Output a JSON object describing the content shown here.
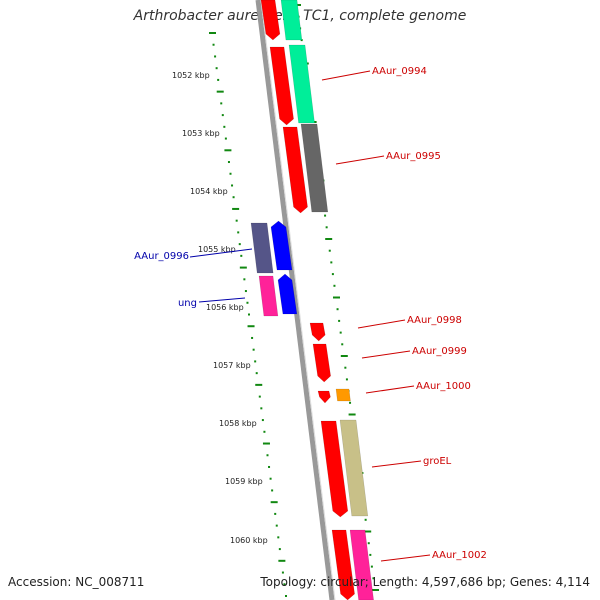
{
  "title": "Arthrobacter aurescens TC1, complete genome",
  "accession": "Accession: NC_008711",
  "summary": "Topology: circular; Length: 4,597,686 bp; Genes: 4,114",
  "ticks": [
    {
      "label": "1052 kbp"
    },
    {
      "label": "1053 kbp"
    },
    {
      "label": "1054 kbp"
    },
    {
      "label": "1055 kbp"
    },
    {
      "label": "1056 kbp"
    },
    {
      "label": "1057 kbp"
    },
    {
      "label": "1058 kbp"
    },
    {
      "label": "1059 kbp"
    },
    {
      "label": "1060 kbp"
    }
  ],
  "gene_labels": [
    {
      "text": "AAur_0994",
      "color": "#cc0000"
    },
    {
      "text": "AAur_0995",
      "color": "#cc0000"
    },
    {
      "text": "AAur_0996",
      "color": "#0000aa"
    },
    {
      "text": "ung",
      "color": "#0000aa"
    },
    {
      "text": "AAur_0998",
      "color": "#cc0000"
    },
    {
      "text": "AAur_0999",
      "color": "#cc0000"
    },
    {
      "text": "AAur_1000",
      "color": "#cc0000"
    },
    {
      "text": "groEL",
      "color": "#cc0000"
    },
    {
      "text": "AAur_1002",
      "color": "#cc0000"
    }
  ],
  "colors": {
    "backbone": "#888888",
    "forward_gene": "#ff0000",
    "reverse_gene": "#0000ff",
    "tick": "#118811",
    "cog_teal": "#00ee99",
    "cog_gray": "#666666",
    "cog_purple": "#555588",
    "cog_pink": "#ff2299",
    "cog_orange": "#ff9900",
    "cog_khaki": "#c8c088"
  }
}
